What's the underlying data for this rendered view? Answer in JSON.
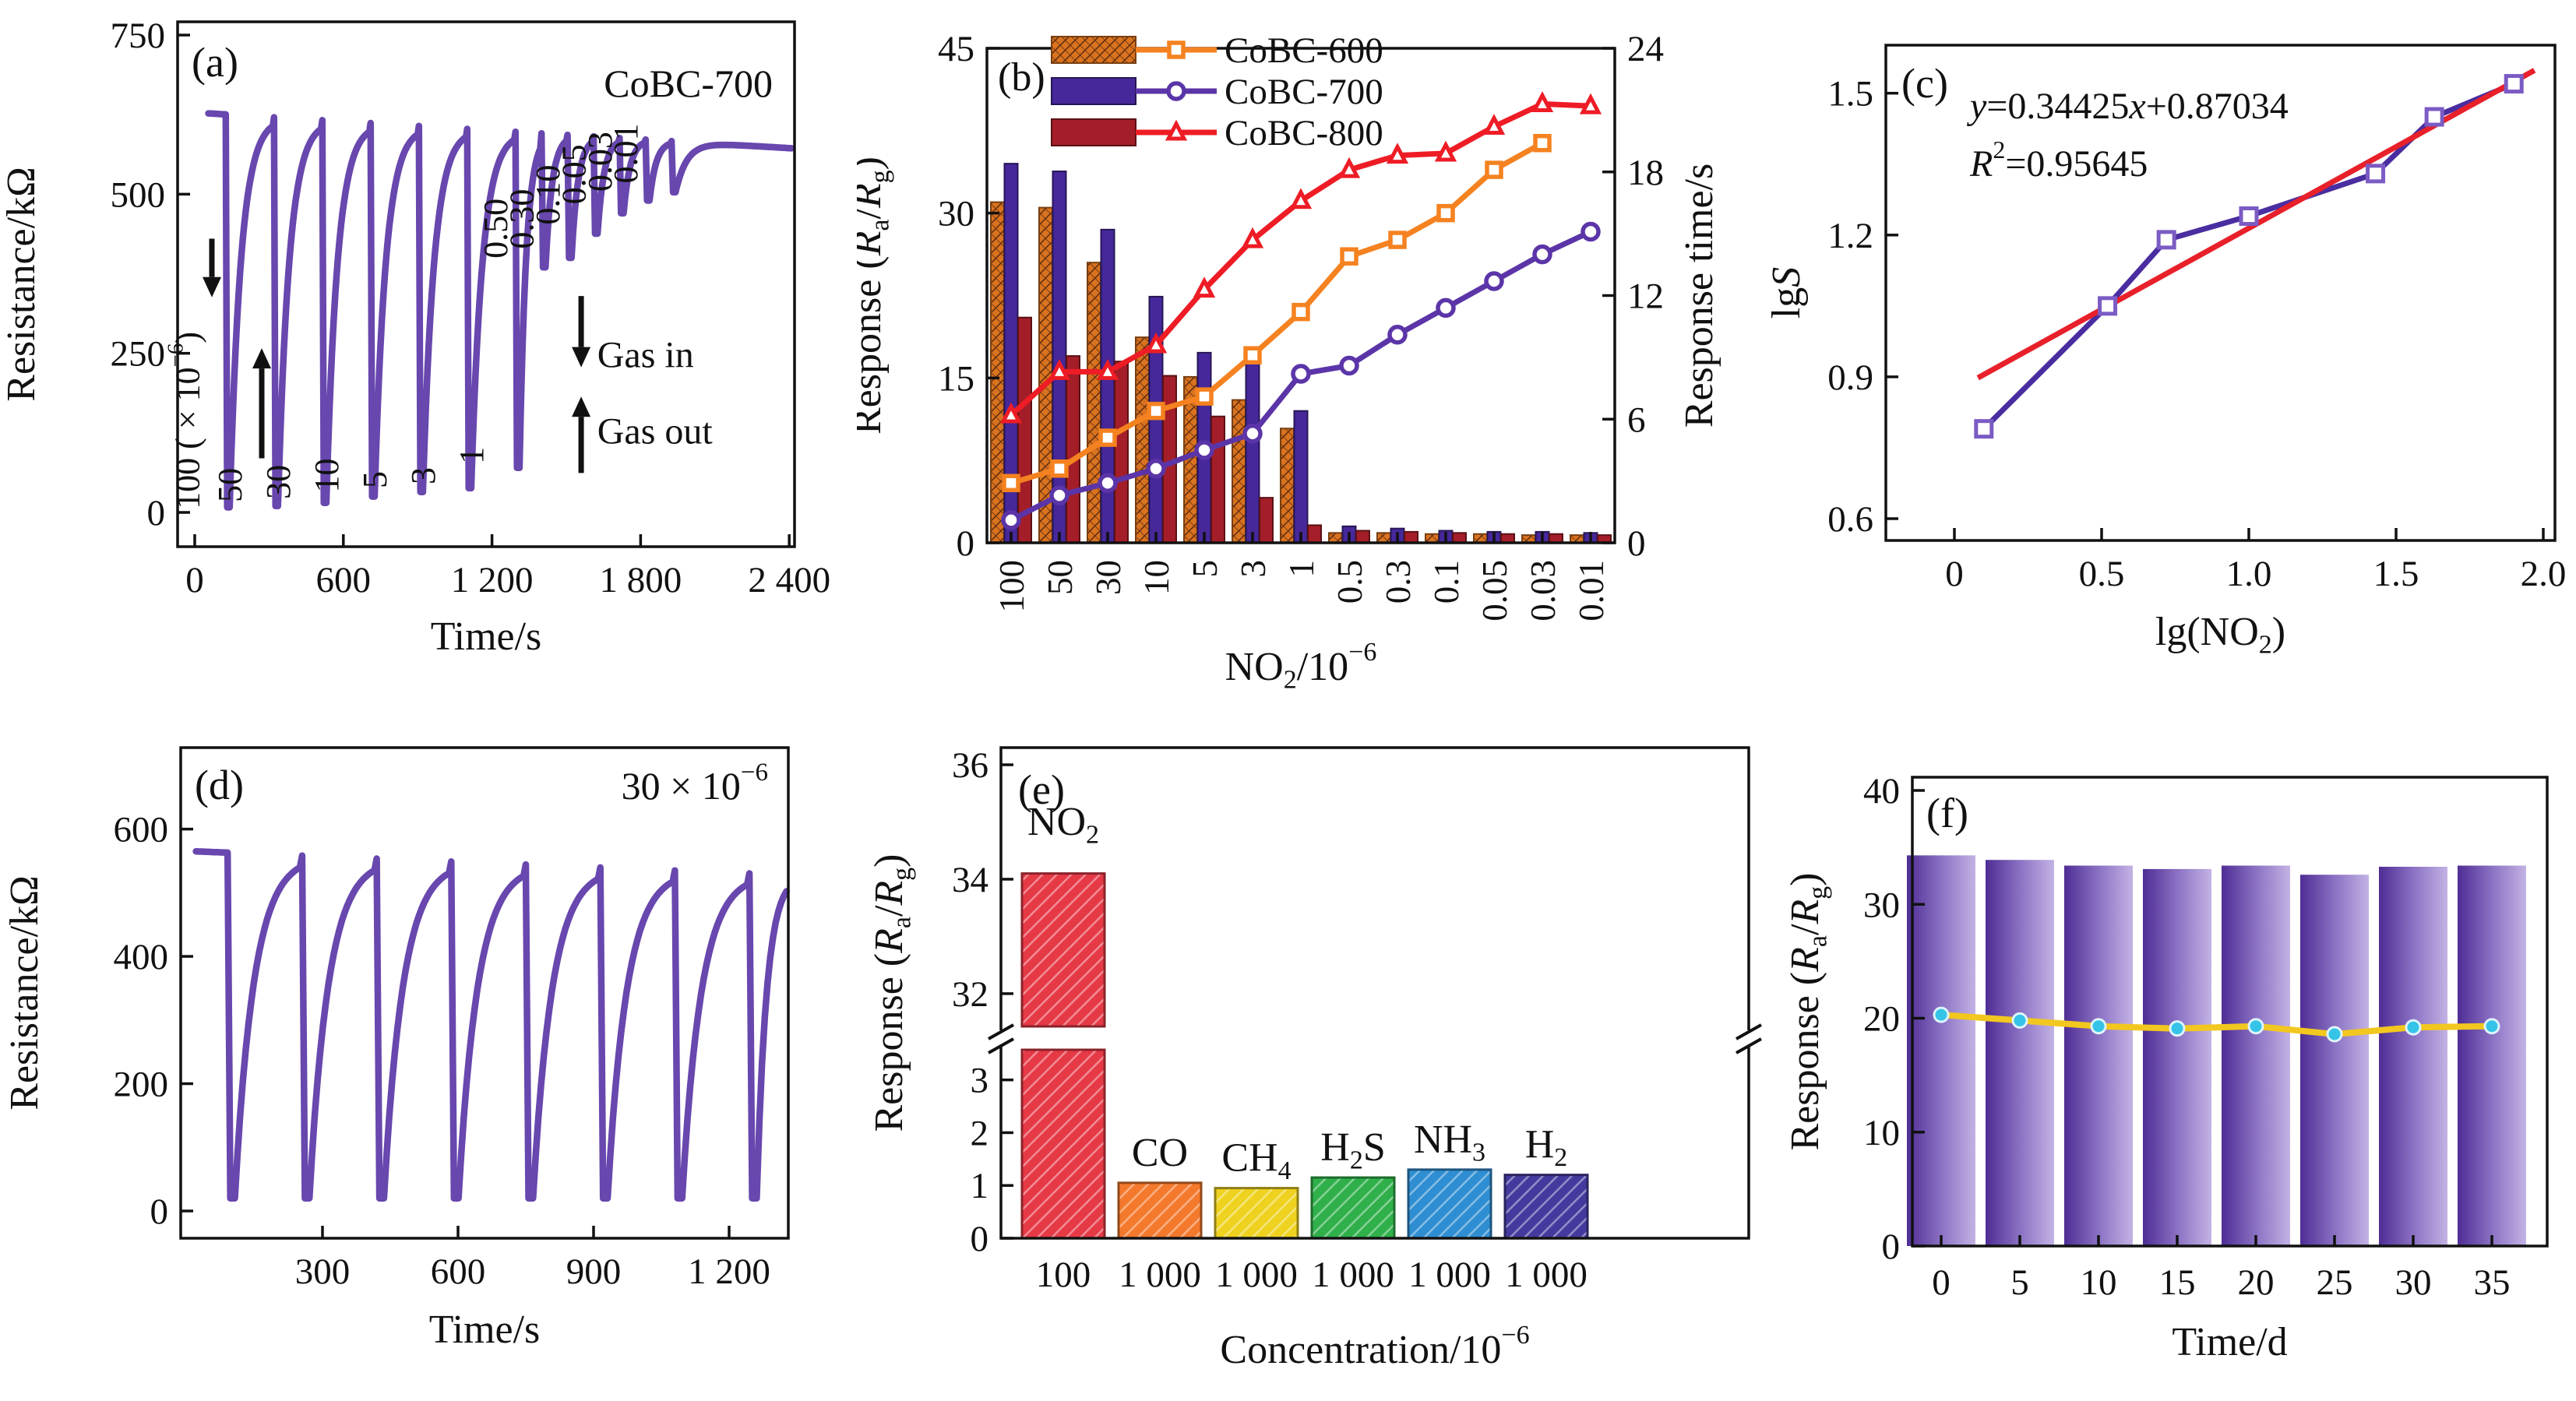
{
  "figure": {
    "background": "#ffffff",
    "axis_color": "#111111"
  },
  "chart_data": [
    {
      "panel": "a",
      "type": "line",
      "subtype": "gas-response-transient",
      "panel_label": "(a)",
      "title": "CoBC-700",
      "xlabel": "Time/s",
      "ylabel": "Resistance/kΩ",
      "xticks": [
        {
          "v": 0,
          "t": "0"
        },
        {
          "v": 600,
          "t": "600"
        },
        {
          "v": 1200,
          "t": "1 200"
        },
        {
          "v": 1800,
          "t": "1 800"
        },
        {
          "v": 2400,
          "t": "2 400"
        }
      ],
      "yticks": [
        {
          "v": 0,
          "t": "0"
        },
        {
          "v": 250,
          "t": "250"
        },
        {
          "v": 500,
          "t": "500"
        },
        {
          "v": 750,
          "t": "750"
        }
      ],
      "line_color": "#6847ae",
      "baseline_start": 627,
      "baseline_end": 572,
      "cycles": [
        {
          "label": "100 ( × 10^{−6})",
          "t": 125,
          "min": 8
        },
        {
          "label": "50",
          "t": 320,
          "min": 10
        },
        {
          "label": "30",
          "t": 515,
          "min": 15
        },
        {
          "label": "10",
          "t": 710,
          "min": 25
        },
        {
          "label": "5",
          "t": 905,
          "min": 32
        },
        {
          "label": "3",
          "t": 1100,
          "min": 38
        },
        {
          "label": "1",
          "t": 1295,
          "min": 70
        },
        {
          "label": "0.50",
          "t": 1400,
          "min": 385
        },
        {
          "label": "0.30",
          "t": 1505,
          "min": 400
        },
        {
          "label": "0.10",
          "t": 1610,
          "min": 438
        },
        {
          "label": "0.05",
          "t": 1715,
          "min": 470
        },
        {
          "label": "0.03",
          "t": 1820,
          "min": 490
        },
        {
          "label": "0.01",
          "t": 1925,
          "min": 503
        }
      ],
      "gas_in": "Gas in",
      "gas_out": "Gas out"
    },
    {
      "panel": "b",
      "type": "bar",
      "subtype": "dual-axis-bar-line",
      "panel_label": "(b)",
      "xlabel": "NO_{2}/10^{−6}",
      "ylabel": "Response (*R*_{a}/*R*_{g})",
      "ylabel_right": "Response time/s",
      "categories": [
        "100",
        "50",
        "30",
        "10",
        "5",
        "3",
        "1",
        "0.5",
        "0.3",
        "0.1",
        "0.05",
        "0.03",
        "0.01"
      ],
      "ylim_left": [
        0,
        45
      ],
      "yticks_left": [
        0,
        15,
        30,
        45
      ],
      "ylim_right": [
        0,
        24
      ],
      "yticks_right": [
        0,
        6,
        12,
        18,
        24
      ],
      "series": [
        {
          "name": "CoBC-600",
          "bar_color": "#d9731f",
          "bar_hatch": "#5e2c10",
          "line_color": "#f58220",
          "marker": "square",
          "response": [
            31,
            30.5,
            25.5,
            18.7,
            15.1,
            13,
            10.4,
            0.9,
            0.9,
            0.8,
            0.8,
            0.7,
            0.7
          ],
          "response_time": [
            2.9,
            3.6,
            5.1,
            6.4,
            7.1,
            9.1,
            11.2,
            13.9,
            14.7,
            16,
            18.1,
            19.4,
            null
          ]
        },
        {
          "name": "CoBC-700",
          "bar_color": "#46289b",
          "bar_hatch": null,
          "line_color": "#5b35a8",
          "marker": "circle",
          "response": [
            34.5,
            33.8,
            28.5,
            22.4,
            17.3,
            16.4,
            12,
            1.5,
            1.3,
            1.1,
            1,
            1,
            0.9
          ],
          "response_time": [
            1.1,
            2.3,
            2.9,
            3.6,
            4.5,
            5.3,
            8.2,
            8.6,
            10.1,
            11.4,
            12.7,
            14,
            15.1
          ]
        },
        {
          "name": "CoBC-800",
          "bar_color": "#a31e28",
          "bar_hatch": null,
          "line_color": "#ee1c25",
          "marker": "triangle",
          "response": [
            20.5,
            17,
            16.5,
            15.2,
            11.5,
            4.1,
            1.6,
            1.1,
            1,
            0.9,
            0.8,
            0.8,
            0.7
          ],
          "response_time": [
            6.2,
            8.3,
            8.3,
            9.6,
            12.3,
            14.7,
            16.6,
            18.1,
            18.8,
            18.9,
            20.2,
            21.3,
            21.2
          ]
        }
      ]
    },
    {
      "panel": "c",
      "type": "scatter",
      "panel_label": "(c)",
      "xlabel": "lg(NO_{2})",
      "ylabel": "lg*S*",
      "equation": "*y*=0.34425*x*+0.87034",
      "r_squared": "*R*^{2}=0.95645",
      "x": [
        0.1,
        0.52,
        0.72,
        1.0,
        1.43,
        1.63,
        1.9
      ],
      "y": [
        0.79,
        1.05,
        1.19,
        1.24,
        1.33,
        1.45,
        1.52
      ],
      "fit": {
        "slope": 0.34425,
        "intercept": 0.87034,
        "x_start": 0.08,
        "x_end": 1.97,
        "color": "#e8202a"
      },
      "line_color": "#4a2da0",
      "marker_color": "#7b5bc4",
      "xticks": [
        {
          "v": 0,
          "t": "0"
        },
        {
          "v": 0.5,
          "t": "0.5"
        },
        {
          "v": 1,
          "t": "1.0"
        },
        {
          "v": 1.5,
          "t": "1.5"
        },
        {
          "v": 2,
          "t": "2.0"
        }
      ],
      "yticks": [
        {
          "v": 0.6,
          "t": "0.6"
        },
        {
          "v": 0.9,
          "t": "0.9"
        },
        {
          "v": 1.2,
          "t": "1.2"
        },
        {
          "v": 1.5,
          "t": "1.5"
        }
      ]
    },
    {
      "panel": "d",
      "type": "line",
      "subtype": "gas-response-transient",
      "panel_label": "(d)",
      "title": "30 × 10^{−6}",
      "xlabel": "Time/s",
      "ylabel": "Resistance/kΩ",
      "xticks": [
        {
          "v": 300,
          "t": "300"
        },
        {
          "v": 600,
          "t": "600"
        },
        {
          "v": 900,
          "t": "900"
        },
        {
          "v": 1200,
          "t": "1 200"
        }
      ],
      "yticks": [
        {
          "v": 0,
          "t": "0"
        },
        {
          "v": 200,
          "t": "200"
        },
        {
          "v": 400,
          "t": "400"
        },
        {
          "v": 600,
          "t": "600"
        }
      ],
      "line_color": "#6847ae",
      "baseline_start": 565,
      "baseline_end": 528,
      "cycles": [
        {
          "label": null,
          "t": 90,
          "min": 20
        },
        {
          "label": null,
          "t": 255,
          "min": 20
        },
        {
          "label": null,
          "t": 420,
          "min": 20
        },
        {
          "label": null,
          "t": 585,
          "min": 20
        },
        {
          "label": null,
          "t": 750,
          "min": 20
        },
        {
          "label": null,
          "t": 915,
          "min": 20
        },
        {
          "label": null,
          "t": 1080,
          "min": 20
        },
        {
          "label": null,
          "t": 1245,
          "min": 20
        }
      ]
    },
    {
      "panel": "e",
      "type": "bar",
      "subtype": "selectivity-broken-axis",
      "panel_label": "(e)",
      "xlabel": "Concentration/10^{−6}",
      "ylabel": "Response (*R*_{a}/*R*_{g})",
      "axis_break": {
        "lower_max": 3.6,
        "upper_min": 31.4,
        "upper_max": 36.3
      },
      "yticks_lower": [
        0,
        1,
        2,
        3
      ],
      "yticks_upper": [
        32,
        34,
        36
      ],
      "bars": [
        {
          "gas": "NO_{2}",
          "concentration": "100",
          "value": 34.1,
          "color": "#e63946"
        },
        {
          "gas": "CO",
          "concentration": "1 000",
          "value": 1.05,
          "color": "#f4792c"
        },
        {
          "gas": "CH_{4}",
          "concentration": "1 000",
          "value": 0.95,
          "color": "#eed21f"
        },
        {
          "gas": "H_{2}S",
          "concentration": "1 000",
          "value": 1.15,
          "color": "#2fb04a"
        },
        {
          "gas": "NH_{3}",
          "concentration": "1 000",
          "value": 1.3,
          "color": "#2f8ed2"
        },
        {
          "gas": "H_{2}",
          "concentration": "1 000",
          "value": 1.2,
          "color": "#443a9e"
        }
      ]
    },
    {
      "panel": "f",
      "type": "bar",
      "subtype": "long-term-stability",
      "panel_label": "(f)",
      "xlabel": "Time/d",
      "ylabel": "Response (*R*_{a}/*R*_{g})",
      "categories": [
        "0",
        "5",
        "10",
        "15",
        "20",
        "25",
        "30",
        "35"
      ],
      "ylim": [
        0,
        40
      ],
      "yticks": [
        0,
        10,
        20,
        30,
        40
      ],
      "bars": [
        34.3,
        33.9,
        33.4,
        33.1,
        33.4,
        32.6,
        33.3,
        33.4
      ],
      "line": [
        20.3,
        19.8,
        19.3,
        19.1,
        19.3,
        18.6,
        19.2,
        19.3
      ],
      "bar_gradient": [
        "#4f2d95",
        "#9078c7",
        "#c3b2e4"
      ],
      "line_color": "#f2c71f",
      "marker_color": "#35c4e8"
    }
  ]
}
